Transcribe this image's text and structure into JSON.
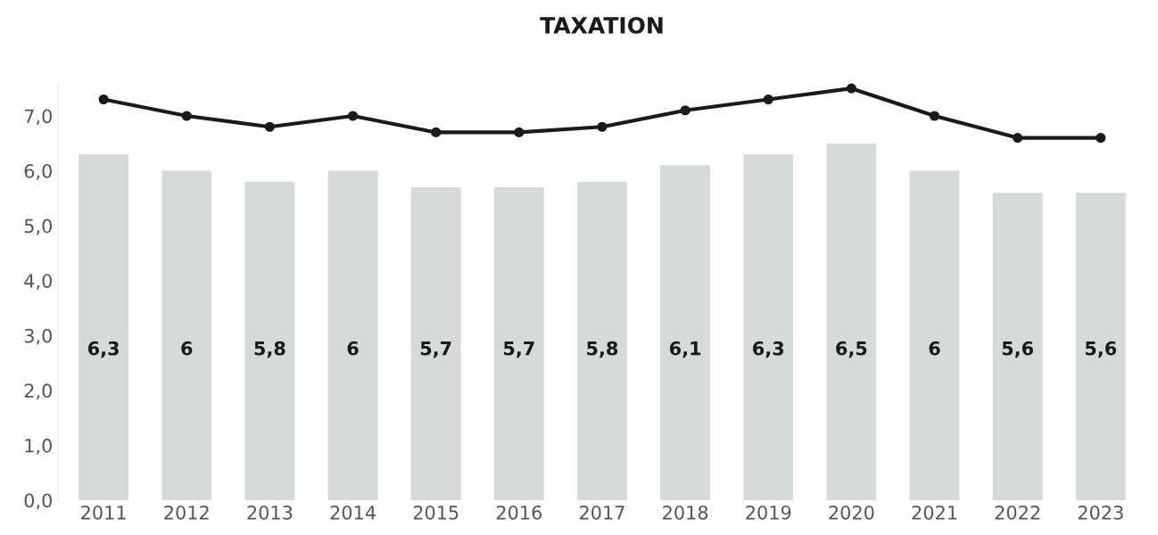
{
  "chart_data": {
    "type": "bar",
    "title": "TAXATION",
    "categories": [
      "2011",
      "2012",
      "2013",
      "2014",
      "2015",
      "2016",
      "2017",
      "2018",
      "2019",
      "2020",
      "2021",
      "2022",
      "2023"
    ],
    "series": [
      {
        "color": "#d5dbdb",
        "values": [
          6.3,
          6,
          5.8,
          6,
          5.7,
          5.7,
          5.8,
          6.1,
          6.3,
          6.5,
          6,
          5.6,
          5.6
        ],
        "value_labels": [
          "6,3",
          "6",
          "5,8",
          "6",
          "5,7",
          "5,7",
          "5,8",
          "6,1",
          "6,3",
          "6,5",
          "6",
          "5,6",
          "5,6"
        ]
      },
      {
        "type": "line",
        "color": "#1a1a1a",
        "marker": "circle",
        "values": [
          7.3,
          7.0,
          6.8,
          7.0,
          6.7,
          6.7,
          6.8,
          7.1,
          7.3,
          7.5,
          7.0,
          6.6,
          6.6
        ]
      }
    ],
    "ylim": [
      0,
      7.6
    ],
    "yticks": [
      {
        "value": 0,
        "label": "0,0"
      },
      {
        "value": 1,
        "label": "1,0"
      },
      {
        "value": 2,
        "label": "2,0"
      },
      {
        "value": 3,
        "label": "3,0"
      },
      {
        "value": 4,
        "label": "4,0"
      },
      {
        "value": 5,
        "label": "5,0"
      },
      {
        "value": 6,
        "label": "6,0"
      },
      {
        "value": 7,
        "label": "7,0"
      }
    ],
    "grid": false,
    "legend": false
  }
}
